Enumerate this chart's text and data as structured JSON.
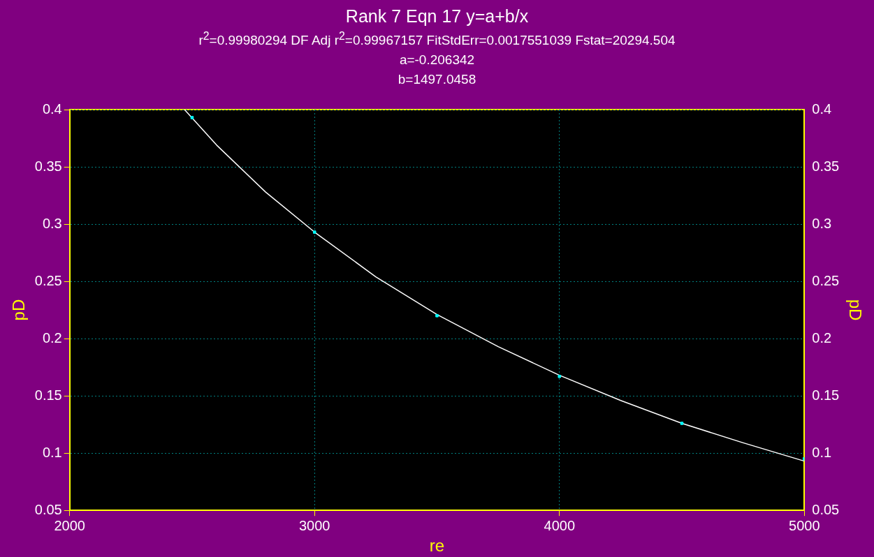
{
  "chart_data": {
    "type": "scatter",
    "title": "Rank 7  Eqn 17  y=a+b/x",
    "subtitle": "r$^{2}$=0.99980294  DF Adj r$^{2}$=0.99967157  FitStdErr=0.0017551039  Fstat=20294.504",
    "annotations": [
      "a=-0.206342",
      "b=1497.0458"
    ],
    "xlabel": "re",
    "ylabel": "pD",
    "y2label": "pD",
    "x": [
      2500,
      3000,
      3500,
      4000,
      4500,
      5000
    ],
    "series": [
      {
        "color": "#00ffff",
        "marker": "square",
        "values": [
          0.393,
          0.293,
          0.22,
          0.167,
          0.126,
          0.095
        ]
      },
      {
        "type": "line",
        "color": "#ffffff",
        "marker": "none",
        "line_style": "solid",
        "x": [
          2469,
          2600,
          2800,
          3000,
          3250,
          3500,
          3750,
          4000,
          4250,
          4500,
          4750,
          5000
        ],
        "values": [
          0.4,
          0.369,
          0.328,
          0.293,
          0.254,
          0.221,
          0.193,
          0.168,
          0.146,
          0.126,
          0.109,
          0.093
        ]
      }
    ],
    "xlim": [
      2000,
      5000
    ],
    "xticks": [
      2000,
      3000,
      4000,
      5000
    ],
    "ylim": [
      0.05,
      0.4
    ],
    "yticks": [
      0.05,
      0.1,
      0.15,
      0.2,
      0.25,
      0.3,
      0.35,
      0.4
    ],
    "y2lim": [
      0.05,
      0.4
    ],
    "y2ticks": [
      0.05,
      0.1,
      0.15,
      0.2,
      0.25,
      0.3,
      0.35,
      0.4
    ],
    "grid": true,
    "legend": false
  }
}
